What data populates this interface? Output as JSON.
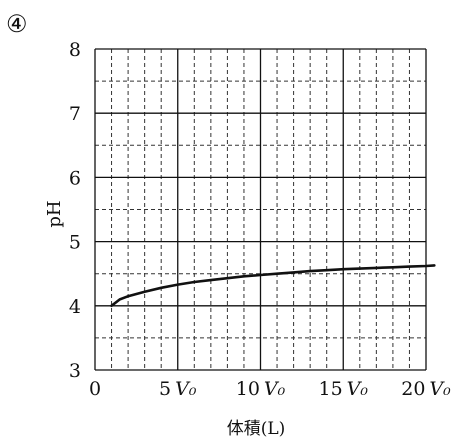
{
  "option_marker": "④",
  "chart_data": {
    "type": "line",
    "title": "",
    "xlabel": "体積(L)",
    "ylabel": "pH",
    "xlim": [
      0,
      20
    ],
    "ylim": [
      3,
      8
    ],
    "x_ticks": [
      {
        "value": 0,
        "num": "0",
        "unit": ""
      },
      {
        "value": 5,
        "num": "5",
        "unit": "V₀"
      },
      {
        "value": 10,
        "num": "10",
        "unit": "V₀"
      },
      {
        "value": 15,
        "num": "15",
        "unit": "V₀"
      },
      {
        "value": 20,
        "num": "20",
        "unit": "V₀"
      }
    ],
    "y_ticks": [
      "3",
      "4",
      "5",
      "6",
      "7",
      "8"
    ],
    "grid": {
      "major_x_step": 5,
      "minor_x_step": 1,
      "major_y_step": 1,
      "minor_y_step": 0.5,
      "minor_style": "dashed"
    },
    "series": [
      {
        "color": "#111111",
        "points": [
          [
            1.0,
            4.0
          ],
          [
            1.5,
            4.1
          ],
          [
            2,
            4.15
          ],
          [
            3,
            4.22
          ],
          [
            4,
            4.28
          ],
          [
            5,
            4.33
          ],
          [
            6,
            4.37
          ],
          [
            7,
            4.4
          ],
          [
            8,
            4.43
          ],
          [
            9,
            4.46
          ],
          [
            10,
            4.48
          ],
          [
            11,
            4.5
          ],
          [
            12,
            4.52
          ],
          [
            13,
            4.54
          ],
          [
            14,
            4.555
          ],
          [
            15,
            4.57
          ],
          [
            16,
            4.58
          ],
          [
            17,
            4.59
          ],
          [
            18,
            4.6
          ],
          [
            19,
            4.61
          ],
          [
            20,
            4.62
          ],
          [
            20.5,
            4.63
          ]
        ]
      }
    ]
  }
}
